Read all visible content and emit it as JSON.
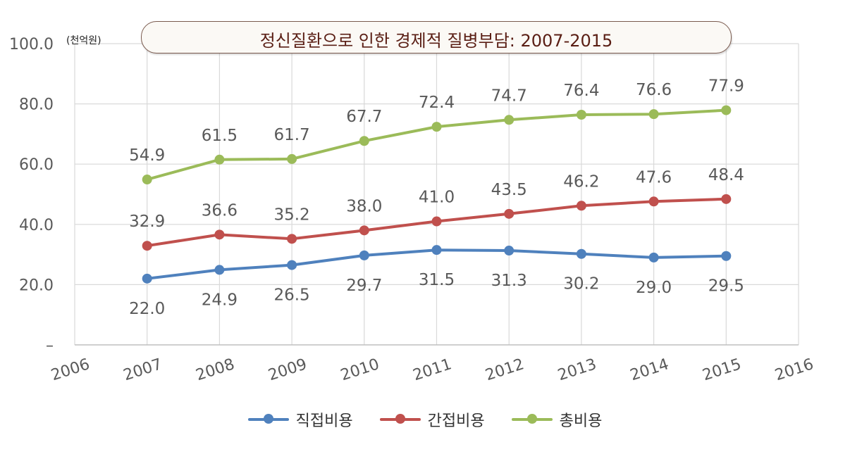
{
  "chart_data": {
    "type": "line",
    "title": "정신질환으로 인한 경제적 질병부담: 2007-2015",
    "unit_label": "(천억원)",
    "x": [
      2007,
      2008,
      2009,
      2010,
      2011,
      2012,
      2013,
      2014,
      2015
    ],
    "x_ticks": [
      "2006",
      "2007",
      "2008",
      "2009",
      "2010",
      "2011",
      "2012",
      "2013",
      "2014",
      "2015",
      "2016"
    ],
    "xlim": [
      2006,
      2016
    ],
    "y_ticks": [
      "–",
      "20.0",
      "40.0",
      "60.0",
      "80.0",
      "100.0"
    ],
    "ylim": [
      0,
      100
    ],
    "grid": true,
    "legend_position": "bottom",
    "series": [
      {
        "name": "직접비용",
        "color": "#4f81bd",
        "label_position": "below",
        "values": [
          22.0,
          24.9,
          26.5,
          29.7,
          31.5,
          31.3,
          30.2,
          29.0,
          29.5
        ],
        "labels": [
          "22.0",
          "24.9",
          "26.5",
          "29.7",
          "31.5",
          "31.3",
          "30.2",
          "29.0",
          "29.5"
        ]
      },
      {
        "name": "간접비용",
        "color": "#c0504d",
        "label_position": "above",
        "values": [
          32.9,
          36.6,
          35.2,
          38.0,
          41.0,
          43.5,
          46.2,
          47.6,
          48.4
        ],
        "labels": [
          "32.9",
          "36.6",
          "35.2",
          "38.0",
          "41.0",
          "43.5",
          "46.2",
          "47.6",
          "48.4"
        ]
      },
      {
        "name": "총비용",
        "color": "#9bbb59",
        "label_position": "above",
        "values": [
          54.9,
          61.5,
          61.7,
          67.7,
          72.4,
          74.7,
          76.4,
          76.6,
          77.9
        ],
        "labels": [
          "54.9",
          "61.5",
          "61.7",
          "67.7",
          "72.4",
          "74.7",
          "76.4",
          "76.6",
          "77.9"
        ]
      }
    ]
  }
}
